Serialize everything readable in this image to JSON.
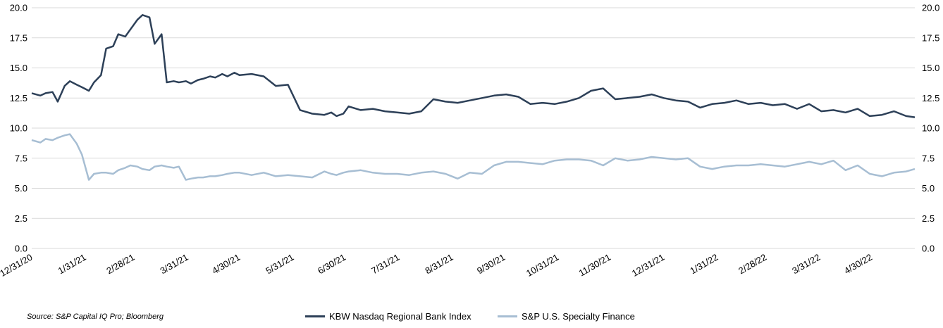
{
  "source": "Source: S&P Capital IQ Pro; Bloomberg",
  "colors": {
    "kbw": "#2d4058",
    "spf": "#a7bed3"
  },
  "chart_data": {
    "type": "line",
    "title": "",
    "xlabel": "",
    "ylabel": "",
    "ylim": [
      0,
      20
    ],
    "yticks": [
      "0.0",
      "2.5",
      "5.0",
      "7.5",
      "10.0",
      "12.5",
      "15.0",
      "17.5",
      "20.0"
    ],
    "y2ticks": [
      "0.0",
      "2.5",
      "5.0",
      "7.5",
      "10.0",
      "12.5",
      "15.0",
      "17.5",
      "20.0"
    ],
    "xlim": [
      "12/31/20",
      "5/25/22"
    ],
    "xticks": [
      "12/31/20",
      "1/31/21",
      "2/28/21",
      "3/31/21",
      "4/30/21",
      "5/31/21",
      "6/30/21",
      "7/31/21",
      "8/31/21",
      "9/30/21",
      "10/31/21",
      "11/30/21",
      "12/31/21",
      "1/31/22",
      "2/28/22",
      "3/31/22",
      "4/30/22"
    ],
    "grid": true,
    "legend_position": "bottom",
    "series": [
      {
        "name": "KBW Nasdaq Regional Bank Index",
        "x": [
          "12/31/20",
          "1/5/21",
          "1/8/21",
          "1/12/21",
          "1/15/21",
          "1/19/21",
          "1/22/21",
          "1/26/21",
          "1/29/21",
          "2/2/21",
          "2/5/21",
          "2/9/21",
          "2/12/21",
          "2/16/21",
          "2/19/21",
          "2/23/21",
          "2/26/21",
          "3/2/21",
          "3/5/21",
          "3/9/21",
          "3/12/21",
          "3/16/21",
          "3/19/21",
          "3/23/21",
          "3/26/21",
          "3/30/21",
          "4/2/21",
          "4/6/21",
          "4/9/21",
          "4/13/21",
          "4/16/21",
          "4/20/21",
          "4/23/21",
          "4/27/21",
          "4/30/21",
          "5/7/21",
          "5/14/21",
          "5/21/21",
          "5/28/21",
          "6/4/21",
          "6/11/21",
          "6/18/21",
          "6/22/21",
          "6/25/21",
          "6/29/21",
          "7/2/21",
          "7/9/21",
          "7/16/21",
          "7/23/21",
          "7/30/21",
          "8/6/21",
          "8/13/21",
          "8/20/21",
          "8/27/21",
          "9/3/21",
          "9/10/21",
          "9/17/21",
          "9/24/21",
          "10/1/21",
          "10/8/21",
          "10/15/21",
          "10/22/21",
          "10/29/21",
          "11/5/21",
          "11/12/21",
          "11/19/21",
          "11/26/21",
          "12/3/21",
          "12/10/21",
          "12/17/21",
          "12/24/21",
          "12/31/21",
          "1/7/22",
          "1/14/22",
          "1/21/22",
          "1/28/22",
          "2/4/22",
          "2/11/22",
          "2/18/22",
          "2/25/22",
          "3/4/22",
          "3/11/22",
          "3/18/22",
          "3/25/22",
          "4/1/22",
          "4/8/22",
          "4/15/22",
          "4/22/22",
          "4/29/22",
          "5/6/22",
          "5/13/22",
          "5/20/22",
          "5/25/22"
        ],
        "values": [
          12.9,
          12.7,
          12.9,
          13.0,
          12.2,
          13.5,
          13.9,
          13.6,
          13.4,
          13.1,
          13.8,
          14.4,
          16.6,
          16.8,
          17.8,
          17.6,
          18.2,
          19.0,
          19.4,
          19.2,
          17.0,
          17.8,
          13.8,
          13.9,
          13.8,
          13.9,
          13.7,
          14.0,
          14.1,
          14.3,
          14.2,
          14.5,
          14.3,
          14.6,
          14.4,
          14.5,
          14.3,
          13.5,
          13.6,
          11.5,
          11.2,
          11.1,
          11.3,
          11.0,
          11.2,
          11.8,
          11.5,
          11.6,
          11.4,
          11.3,
          11.2,
          11.4,
          12.4,
          12.2,
          12.1,
          12.3,
          12.5,
          12.7,
          12.8,
          12.6,
          12.0,
          12.1,
          12.0,
          12.2,
          12.5,
          13.1,
          13.3,
          12.4,
          12.5,
          12.6,
          12.8,
          12.5,
          12.3,
          12.2,
          11.7,
          12.0,
          12.1,
          12.3,
          12.0,
          12.1,
          11.9,
          12.0,
          11.6,
          12.0,
          11.4,
          11.5,
          11.3,
          11.6,
          11.0,
          11.1,
          11.4,
          11.0,
          10.9
        ],
        "color": "#2d4058"
      },
      {
        "name": "S&P U.S. Specialty Finance",
        "x": [
          "12/31/20",
          "1/5/21",
          "1/8/21",
          "1/12/21",
          "1/15/21",
          "1/19/21",
          "1/22/21",
          "1/26/21",
          "1/29/21",
          "2/2/21",
          "2/5/21",
          "2/9/21",
          "2/12/21",
          "2/16/21",
          "2/19/21",
          "2/23/21",
          "2/26/21",
          "3/2/21",
          "3/5/21",
          "3/9/21",
          "3/12/21",
          "3/16/21",
          "3/19/21",
          "3/23/21",
          "3/26/21",
          "3/30/21",
          "4/2/21",
          "4/6/21",
          "4/9/21",
          "4/13/21",
          "4/16/21",
          "4/20/21",
          "4/23/21",
          "4/27/21",
          "4/30/21",
          "5/7/21",
          "5/14/21",
          "5/21/21",
          "5/28/21",
          "6/4/21",
          "6/11/21",
          "6/18/21",
          "6/22/21",
          "6/25/21",
          "6/29/21",
          "7/2/21",
          "7/9/21",
          "7/16/21",
          "7/23/21",
          "7/30/21",
          "8/6/21",
          "8/13/21",
          "8/20/21",
          "8/27/21",
          "9/3/21",
          "9/10/21",
          "9/17/21",
          "9/24/21",
          "10/1/21",
          "10/8/21",
          "10/15/21",
          "10/22/21",
          "10/29/21",
          "11/5/21",
          "11/12/21",
          "11/19/21",
          "11/26/21",
          "12/3/21",
          "12/10/21",
          "12/17/21",
          "12/24/21",
          "12/31/21",
          "1/7/22",
          "1/14/22",
          "1/21/22",
          "1/28/22",
          "2/4/22",
          "2/11/22",
          "2/18/22",
          "2/25/22",
          "3/4/22",
          "3/11/22",
          "3/18/22",
          "3/25/22",
          "4/1/22",
          "4/8/22",
          "4/15/22",
          "4/22/22",
          "4/29/22",
          "5/6/22",
          "5/13/22",
          "5/20/22",
          "5/25/22"
        ],
        "values": [
          9.0,
          8.8,
          9.1,
          9.0,
          9.2,
          9.4,
          9.5,
          8.7,
          7.8,
          5.7,
          6.2,
          6.3,
          6.3,
          6.2,
          6.5,
          6.7,
          6.9,
          6.8,
          6.6,
          6.5,
          6.8,
          6.9,
          6.8,
          6.7,
          6.8,
          5.7,
          5.8,
          5.9,
          5.9,
          6.0,
          6.0,
          6.1,
          6.2,
          6.3,
          6.3,
          6.1,
          6.3,
          6.0,
          6.1,
          6.0,
          5.9,
          6.4,
          6.2,
          6.1,
          6.3,
          6.4,
          6.5,
          6.3,
          6.2,
          6.2,
          6.1,
          6.3,
          6.4,
          6.2,
          5.8,
          6.3,
          6.2,
          6.9,
          7.2,
          7.2,
          7.1,
          7.0,
          7.3,
          7.4,
          7.4,
          7.3,
          6.9,
          7.5,
          7.3,
          7.4,
          7.6,
          7.5,
          7.4,
          7.5,
          6.8,
          6.6,
          6.8,
          6.9,
          6.9,
          7.0,
          6.9,
          6.8,
          7.0,
          7.2,
          7.0,
          7.3,
          6.5,
          6.9,
          6.2,
          6.0,
          6.3,
          6.4,
          6.6
        ],
        "color": "#a7bed3"
      }
    ]
  }
}
